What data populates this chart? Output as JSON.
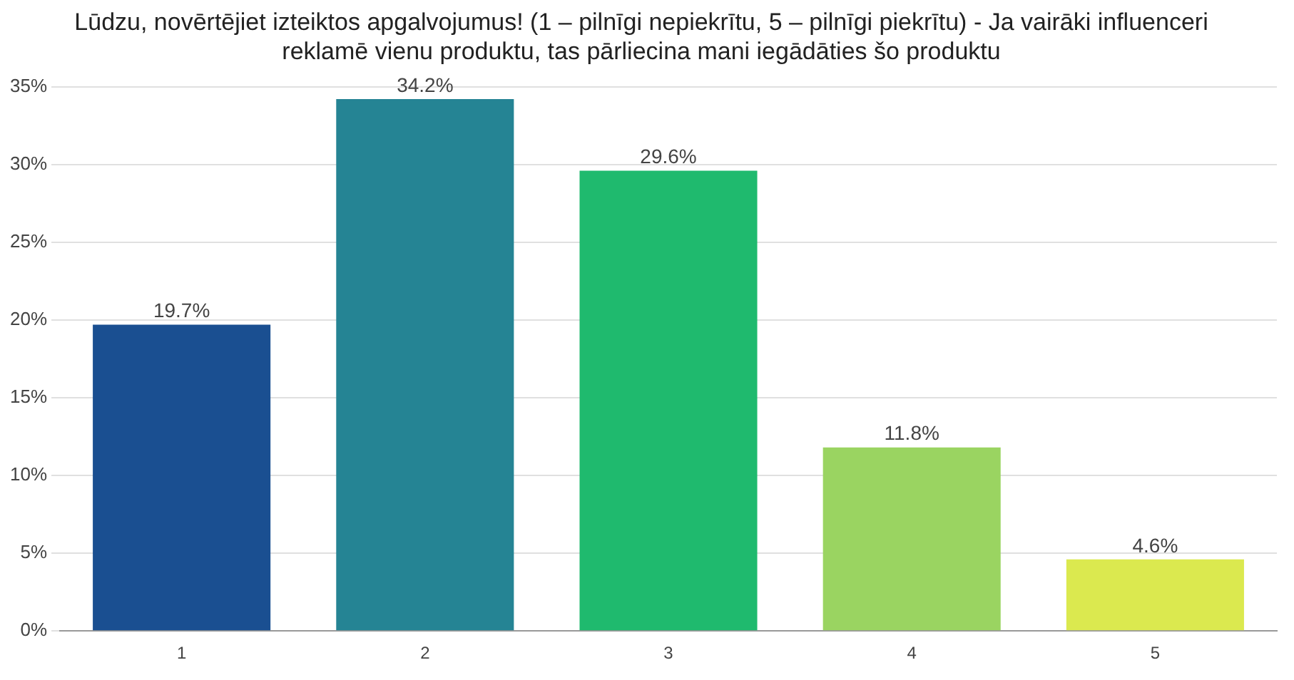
{
  "chart_data": {
    "type": "bar",
    "title": "Lūdzu, novērtējiet izteiktos apgalvojumus! (1 – pilnīgi nepiekrītu, 5 – pilnīgi piekrītu) - Ja vairāki influenceri reklamē vienu produktu, tas pārliecina mani iegādāties šo produktu",
    "categories": [
      "1",
      "2",
      "3",
      "4",
      "5"
    ],
    "values": [
      19.7,
      34.2,
      29.6,
      11.8,
      4.6
    ],
    "value_labels": [
      "19.7%",
      "34.2%",
      "29.6%",
      "11.8%",
      "4.6%"
    ],
    "colors": [
      "#1a4f91",
      "#258494",
      "#1fba6e",
      "#9ad461",
      "#dbe94f"
    ],
    "ylim": [
      0,
      35
    ],
    "yticks": [
      {
        "value": 0,
        "label": "0%"
      },
      {
        "value": 5,
        "label": "5%"
      },
      {
        "value": 10,
        "label": "10%"
      },
      {
        "value": 15,
        "label": "15%"
      },
      {
        "value": 20,
        "label": "20%"
      },
      {
        "value": 25,
        "label": "25%"
      },
      {
        "value": 30,
        "label": "30%"
      },
      {
        "value": 35,
        "label": "35%"
      }
    ],
    "grid": "y",
    "legend": false
  }
}
